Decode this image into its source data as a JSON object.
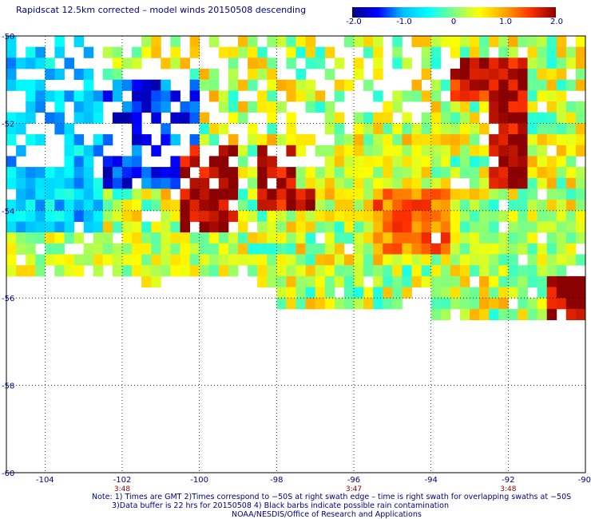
{
  "title": "Rapidscat 12.5km corrected – model winds 20150508 descending",
  "colorbar": {
    "ticks": [
      "-2.0",
      "-1.0",
      "0",
      "1.0",
      "2.0"
    ],
    "range": [
      -2.0,
      2.0
    ],
    "colors": [
      "#000080",
      "#0000ff",
      "#00bfff",
      "#00ffff",
      "#80ff80",
      "#ffff00",
      "#ffa500",
      "#ff3000",
      "#8b0000"
    ]
  },
  "chart_data": {
    "type": "heatmap",
    "title": "Rapidscat 12.5km corrected – model winds 20150508 descending",
    "xlabel": "",
    "ylabel": "",
    "xlim": [
      -105,
      -90
    ],
    "ylim": [
      -60,
      -50
    ],
    "x_ticks": [
      "-104",
      "-102",
      "-100",
      "-98",
      "-96",
      "-94",
      "-92",
      "-90"
    ],
    "y_ticks": [
      "-50",
      "-52",
      "-54",
      "-56",
      "-58",
      "-60"
    ],
    "grid": true,
    "value_range": [
      -2.0,
      2.0
    ],
    "grid_cell_deg": 0.25,
    "coverage_lat_range": [
      -56.4,
      -50
    ],
    "time_labels": [
      {
        "label": "3:48",
        "x": -102
      },
      {
        "label": "3:47",
        "x": -96
      },
      {
        "label": "3:48",
        "x": -92
      }
    ],
    "regions": [
      {
        "lon": [
          -105,
          -102.5
        ],
        "lat": [
          -54.5,
          -50
        ],
        "value": -0.8
      },
      {
        "lon": [
          -102.5,
          -100
        ],
        "lat": [
          -53.5,
          -51
        ],
        "value": -1.4
      },
      {
        "lon": [
          -100.5,
          -99
        ],
        "lat": [
          -55,
          -52.5
        ],
        "value": 1.9
      },
      {
        "lon": [
          -98.5,
          -97
        ],
        "lat": [
          -54,
          -52.5
        ],
        "value": 1.8
      },
      {
        "lon": [
          -95.5,
          -93.5
        ],
        "lat": [
          -55,
          -53.5
        ],
        "value": 1.2
      },
      {
        "lon": [
          -92.5,
          -91.5
        ],
        "lat": [
          -53.5,
          -51.5
        ],
        "value": 1.9
      },
      {
        "lon": [
          -93.5,
          -91.5
        ],
        "lat": [
          -51.5,
          -50.5
        ],
        "value": 1.7
      },
      {
        "lon": [
          -91,
          -90
        ],
        "lat": [
          -56.5,
          -55
        ],
        "value": 2.0
      },
      {
        "lon": [
          -97.5,
          -94
        ],
        "lat": [
          -53.5,
          -52.5
        ],
        "value": 0.4
      },
      {
        "lon": [
          -105,
          -99
        ],
        "lat": [
          -56,
          -54.5
        ],
        "value": 0.3
      },
      {
        "lon": [
          -93,
          -90
        ],
        "lat": [
          -55.5,
          -54
        ],
        "value": 0.2
      }
    ]
  },
  "notes": {
    "line1": "Note: 1) Times are GMT 2)Times correspond to −50S at right swath edge – time is right swath for overlapping swaths at −50S",
    "line2": "3)Data buffer is 22 hrs for 20150508 4) Black barbs indicate possible rain contamination",
    "line3": "NOAA/NESDIS/Office of Research and Applications"
  }
}
